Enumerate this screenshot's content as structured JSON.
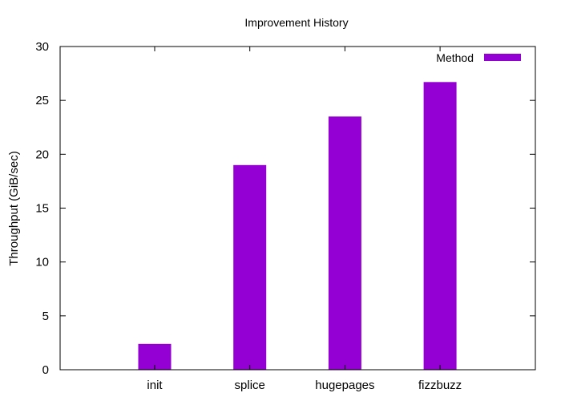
{
  "chart_data": {
    "type": "bar",
    "title": "Improvement History",
    "xlabel": "",
    "ylabel": "Throughput (GiB/sec)",
    "categories": [
      "init",
      "splice",
      "hugepages",
      "fizzbuzz"
    ],
    "series": [
      {
        "name": "Method",
        "values": [
          2.4,
          19.0,
          23.5,
          26.7
        ],
        "color": "#9400d3"
      }
    ],
    "ylim": [
      0,
      30
    ],
    "yticks": [
      0,
      5,
      10,
      15,
      20,
      25,
      30
    ],
    "grid": false,
    "legend": "top-right"
  }
}
